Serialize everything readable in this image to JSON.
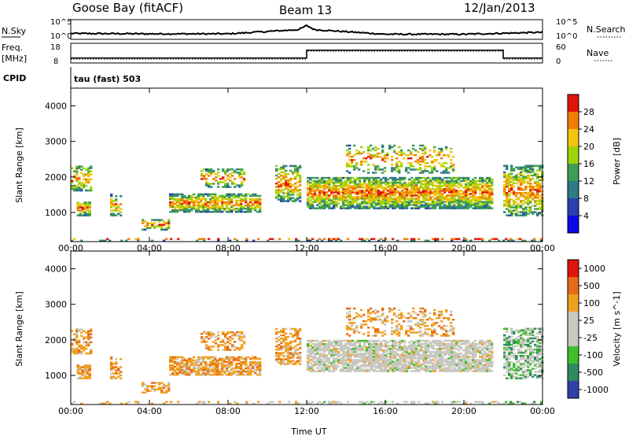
{
  "header": {
    "station": "Goose Bay (fitACF)",
    "beam": "Beam 13",
    "date": "12/Jan/2013"
  },
  "strips": {
    "noise": {
      "left_label": "N.Sky",
      "right_label": "N.Search",
      "left_ticks": [
        "10^5",
        "10^0"
      ],
      "right_ticks": [
        "10^5",
        "10^0"
      ]
    },
    "freq": {
      "left_label": "Freq.",
      "left_unit": "[MHz]",
      "right_label": "Nave",
      "left_ticks": [
        "18",
        "8"
      ],
      "right_ticks": [
        "60",
        "0"
      ]
    },
    "cpid": {
      "label": "CPID",
      "text": "tau (fast) 503"
    }
  },
  "colors": {
    "power_scale": [
      "#0a0ae6",
      "#2b3fb0",
      "#2e7a86",
      "#3f9d55",
      "#9ed40a",
      "#f2c510",
      "#f07d0a",
      "#e0140a"
    ],
    "velocity_scale": [
      "#e0140a",
      "#e86a1a",
      "#f0a020",
      "#c8c8c0",
      "#c8c8c0",
      "#3fbf2a",
      "#2e8a5e",
      "#3040a8"
    ],
    "ground_scatter": "#c8c8c0"
  },
  "chart_data": [
    {
      "type": "line",
      "panel": "noise",
      "x": [
        "00:00",
        "04:00",
        "08:00",
        "12:00",
        "16:00",
        "20:00",
        "00:00"
      ],
      "series": [
        {
          "name": "N.Sky",
          "values": [
            1.5,
            1.4,
            1.4,
            2.6,
            1.3,
            1.3,
            1.8
          ]
        }
      ],
      "ylim": [
        0,
        5
      ],
      "scale": "log"
    },
    {
      "type": "line",
      "panel": "frequency",
      "x": [
        "00:00",
        "12:00",
        "12:00",
        "22:00",
        "22:00",
        "24:00"
      ],
      "series": [
        {
          "name": "Freq.",
          "values": [
            10.5,
            10.5,
            14.5,
            14.5,
            10.5,
            10.5
          ]
        },
        {
          "name": "Nave",
          "values": [
            10,
            10,
            14,
            14,
            10,
            10
          ]
        }
      ],
      "ylim": [
        8,
        18
      ]
    },
    {
      "type": "heatmap",
      "panel": "power",
      "xlabel": "Time UT",
      "ylabel": "Slant Range [km]",
      "xlim": [
        0,
        24
      ],
      "x_ticks": [
        "00:00",
        "04:00",
        "08:00",
        "12:00",
        "16:00",
        "20:00",
        "00:00"
      ],
      "ylim": [
        180,
        4500
      ],
      "y_ticks": [
        1000,
        2000,
        3000,
        4000
      ],
      "colorbar": {
        "label": "Power [dB]",
        "ticks": [
          4,
          8,
          12,
          16,
          20,
          24,
          28
        ],
        "range": [
          0,
          30
        ]
      }
    },
    {
      "type": "heatmap",
      "panel": "velocity",
      "xlabel": "Time UT",
      "ylabel": "Slant Range [km]",
      "xlim": [
        0,
        24
      ],
      "x_ticks": [
        "00:00",
        "04:00",
        "08:00",
        "12:00",
        "16:00",
        "20:00",
        "00:00"
      ],
      "ylim": [
        180,
        4500
      ],
      "y_ticks": [
        1000,
        2000,
        3000,
        4000
      ],
      "colorbar": {
        "label": "Velocity [m s^-1]",
        "ticks": [
          "1000",
          "500",
          "100",
          "25",
          "-25",
          "-100",
          "-500",
          "-1000"
        ]
      }
    }
  ]
}
